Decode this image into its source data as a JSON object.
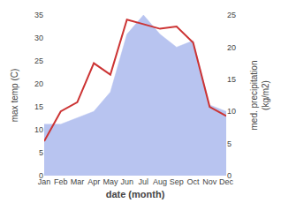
{
  "chart_data": {
    "type": "line",
    "categories": [
      "Jan",
      "Feb",
      "Mar",
      "Apr",
      "May",
      "Jun",
      "Jul",
      "Aug",
      "Sep",
      "Oct",
      "Nov",
      "Dec"
    ],
    "series": [
      {
        "type": "area",
        "axis": "y2",
        "color": "#b8c4f0",
        "values": [
          8.0,
          8.0,
          9.0,
          10.0,
          13.0,
          22.0,
          25.0,
          22.0,
          20.0,
          21.0,
          11.0,
          10.0
        ]
      },
      {
        "type": "line",
        "axis": "y",
        "color": "#cc3333",
        "values": [
          7.5,
          14.0,
          16.0,
          24.5,
          22.0,
          34.0,
          33.0,
          32.0,
          32.5,
          29.0,
          15.0,
          13.0
        ]
      }
    ],
    "x_label": "date (month)",
    "y_label": "max temp (C)",
    "y2_label": "med. precipitation\n(kg/m2)",
    "ylim": [
      0,
      35
    ],
    "yticks": [
      0,
      5,
      10,
      15,
      20,
      25,
      30,
      35
    ],
    "y2lim": [
      0,
      25
    ],
    "y2ticks": [
      0,
      5,
      10,
      15,
      20,
      25
    ],
    "grid": false
  }
}
